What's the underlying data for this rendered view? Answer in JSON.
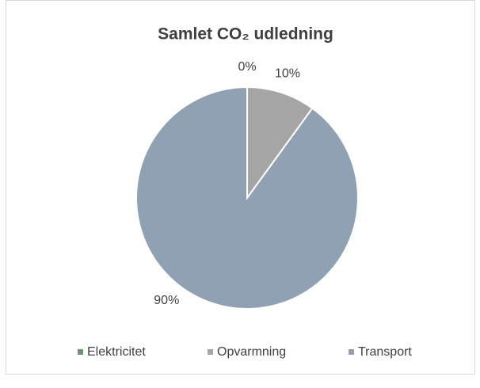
{
  "chart_data": {
    "type": "pie",
    "title": "Samlet CO₂ udledning",
    "categories": [
      "Elektricitet",
      "Opvarmning",
      "Transport"
    ],
    "values": [
      0,
      10,
      90
    ],
    "value_labels": [
      "0%",
      "10%",
      "90%"
    ],
    "colors": [
      "#6f9274",
      "#a5a5a5",
      "#8fa1b3"
    ],
    "legend": "bottom"
  }
}
